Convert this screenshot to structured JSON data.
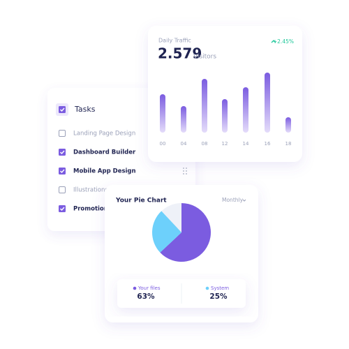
{
  "tasks": {
    "title": "Tasks",
    "checked": true,
    "items": [
      {
        "label": "Landing Page Design",
        "checked": false
      },
      {
        "label": "Dashboard Builder",
        "checked": true
      },
      {
        "label": "Mobile App Design",
        "checked": true
      },
      {
        "label": "Illustrations",
        "checked": false
      },
      {
        "label": "Promotion",
        "checked": true
      }
    ]
  },
  "chart_data": [
    {
      "type": "bar",
      "title": "Daily Traffic",
      "headline": "2.579",
      "headline_unit": "Visitors",
      "change": "+2.45%",
      "categories": [
        "00",
        "04",
        "08",
        "12",
        "14",
        "16",
        "18"
      ],
      "values": [
        55,
        38,
        77,
        48,
        65,
        86,
        22
      ],
      "color": "#7b5ce0",
      "ylim": [
        0,
        100
      ]
    },
    {
      "type": "pie",
      "title": "Your Pie Chart",
      "period": "Monthly",
      "categories": [
        "Your files",
        "System"
      ],
      "values": [
        63,
        25
      ],
      "value_labels": [
        "63%",
        "25%"
      ],
      "colors": [
        "#7b5ce0",
        "#6dd0fb"
      ],
      "background_color": "#eef1f8"
    }
  ]
}
